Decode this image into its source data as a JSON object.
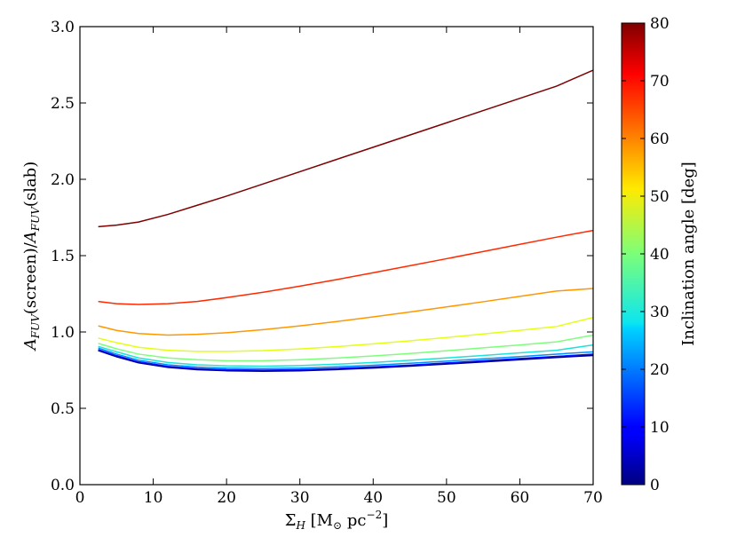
{
  "chart_data": {
    "type": "line",
    "xlabel": "Σ_H [M_⊙ pc^-2]",
    "ylabel": "A_FUV(screen)/A_FUV(slab)",
    "xlim": [
      0,
      70
    ],
    "ylim": [
      0.0,
      3.0
    ],
    "xticks": [
      "0",
      "10",
      "20",
      "30",
      "40",
      "50",
      "60",
      "70"
    ],
    "yticks": [
      "0.0",
      "0.5",
      "1.0",
      "1.5",
      "2.0",
      "2.5",
      "3.0"
    ],
    "grid": false,
    "colorbar": {
      "label": "Inclination angle [deg]",
      "range": [
        0,
        80
      ],
      "ticks": [
        "0",
        "10",
        "20",
        "30",
        "40",
        "50",
        "60",
        "70",
        "80"
      ],
      "colormap": "jet"
    },
    "x": [
      2.5,
      5,
      8,
      12,
      16,
      20,
      25,
      30,
      35,
      40,
      45,
      50,
      55,
      60,
      65,
      70
    ],
    "series": [
      {
        "inclination": 0,
        "color": "#00007f",
        "values": [
          0.88,
          0.84,
          0.8,
          0.77,
          0.755,
          0.748,
          0.745,
          0.748,
          0.756,
          0.766,
          0.778,
          0.792,
          0.806,
          0.82,
          0.835,
          0.848
        ]
      },
      {
        "inclination": 10,
        "color": "#0010ff",
        "values": [
          0.885,
          0.845,
          0.805,
          0.775,
          0.76,
          0.753,
          0.75,
          0.753,
          0.761,
          0.771,
          0.783,
          0.797,
          0.812,
          0.826,
          0.84,
          0.855
        ]
      },
      {
        "inclination": 20,
        "color": "#0090ff",
        "values": [
          0.895,
          0.855,
          0.815,
          0.785,
          0.77,
          0.763,
          0.76,
          0.763,
          0.772,
          0.782,
          0.795,
          0.809,
          0.824,
          0.839,
          0.855,
          0.87
        ]
      },
      {
        "inclination": 30,
        "color": "#1de3d9",
        "values": [
          0.905,
          0.87,
          0.83,
          0.8,
          0.785,
          0.778,
          0.776,
          0.78,
          0.789,
          0.8,
          0.815,
          0.83,
          0.846,
          0.863,
          0.88,
          0.915
        ]
      },
      {
        "inclination": 40,
        "color": "#7dff7a",
        "values": [
          0.925,
          0.89,
          0.855,
          0.83,
          0.818,
          0.812,
          0.812,
          0.818,
          0.829,
          0.843,
          0.859,
          0.877,
          0.896,
          0.915,
          0.935,
          0.98
        ]
      },
      {
        "inclination": 50,
        "color": "#e4ff13",
        "values": [
          0.96,
          0.93,
          0.9,
          0.88,
          0.873,
          0.873,
          0.878,
          0.889,
          0.904,
          0.922,
          0.942,
          0.964,
          0.987,
          1.011,
          1.036,
          1.095
        ]
      },
      {
        "inclination": 60,
        "color": "#ff9800",
        "values": [
          1.04,
          1.01,
          0.99,
          0.98,
          0.985,
          0.995,
          1.015,
          1.04,
          1.068,
          1.099,
          1.131,
          1.164,
          1.198,
          1.233,
          1.268,
          1.285
        ]
      },
      {
        "inclination": 70,
        "color": "#ff2a00",
        "values": [
          1.2,
          1.185,
          1.18,
          1.185,
          1.2,
          1.225,
          1.26,
          1.3,
          1.343,
          1.388,
          1.434,
          1.48,
          1.527,
          1.574,
          1.621,
          1.665
        ]
      },
      {
        "inclination": 80,
        "color": "#7f0000",
        "values": [
          1.69,
          1.7,
          1.72,
          1.77,
          1.83,
          1.89,
          1.97,
          2.05,
          2.13,
          2.21,
          2.29,
          2.37,
          2.45,
          2.53,
          2.61,
          2.715
        ]
      }
    ]
  }
}
